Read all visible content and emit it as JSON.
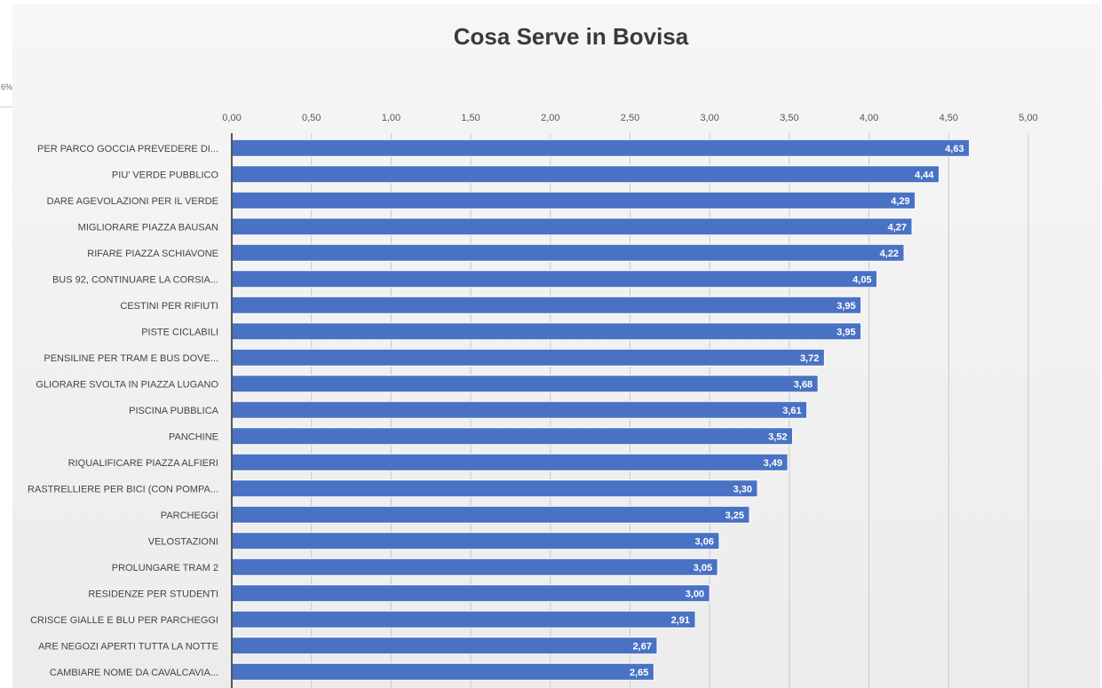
{
  "edge_fragment": "6%",
  "chart_data": {
    "type": "bar",
    "orientation": "horizontal",
    "title": "Cosa Serve in Bovisa",
    "xlabel": "",
    "ylabel": "",
    "xlim": [
      0,
      5
    ],
    "tick_labels": [
      "0,00",
      "0,50",
      "1,00",
      "1,50",
      "2,00",
      "2,50",
      "3,00",
      "3,50",
      "4,00",
      "4,50",
      "5,00"
    ],
    "grid": true,
    "categories": [
      "PER PARCO GOCCIA PREVEDERE DI...",
      "PIU' VERDE PUBBLICO",
      "DARE  AGEVOLAZIONI PER IL VERDE",
      "MIGLIORARE PIAZZA BAUSAN",
      "RIFARE PIAZZA SCHIAVONE",
      "BUS 92, CONTINUARE LA CORSIA...",
      "CESTINI PER RIFIUTI",
      "PISTE CICLABILI",
      "PENSILINE PER TRAM E BUS DOVE...",
      "GLIORARE SVOLTA IN PIAZZA LUGANO",
      "PISCINA PUBBLICA",
      "PANCHINE",
      "RIQUALIFICARE PIAZZA ALFIERI",
      "RASTRELLIERE PER BICI (CON POMPA...",
      "PARCHEGGI",
      "VELOSTAZIONI",
      "PROLUNGARE TRAM 2",
      "RESIDENZE PER STUDENTI",
      "CRISCE GIALLE E BLU PER PARCHEGGI",
      "ARE NEGOZI APERTI TUTTA LA NOTTE",
      "CAMBIARE NOME DA CAVALCAVIA..."
    ],
    "values": [
      4.63,
      4.44,
      4.29,
      4.27,
      4.22,
      4.05,
      3.95,
      3.95,
      3.72,
      3.68,
      3.61,
      3.52,
      3.49,
      3.3,
      3.25,
      3.06,
      3.05,
      3.0,
      2.91,
      2.67,
      2.65
    ],
    "value_labels": [
      "4,63",
      "4,44",
      "4,29",
      "4,27",
      "4,22",
      "4,05",
      "3,95",
      "3,95",
      "3,72",
      "3,68",
      "3,61",
      "3,52",
      "3,49",
      "3,30",
      "3,25",
      "3,06",
      "3,05",
      "3,00",
      "2,91",
      "2,67",
      "2,65"
    ],
    "colors": {
      "bar": "#4a72c4",
      "bar_border": "#ffffff",
      "grid": "#c9c9c9",
      "axis": "#555555"
    }
  }
}
